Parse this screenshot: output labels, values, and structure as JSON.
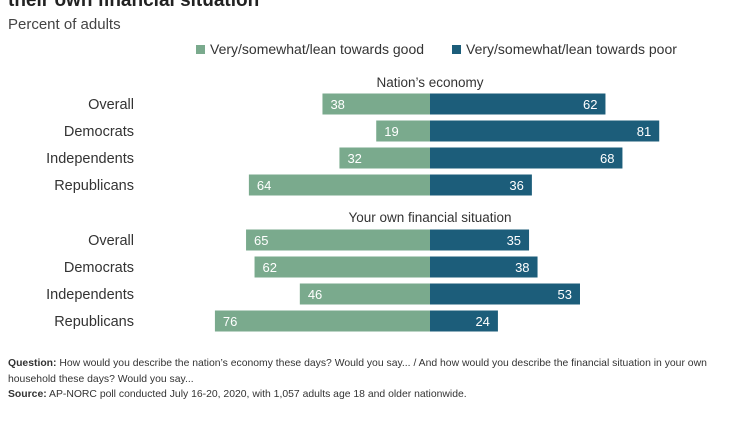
{
  "title": "their own financial situation",
  "subtitle": "Percent of adults",
  "legend": {
    "good": "Very/somewhat/lean towards good",
    "poor": "Very/somewhat/lean towards poor"
  },
  "colors": {
    "good": "#7aaa8d",
    "poor": "#1c5d7a",
    "label_text": "#ffffff"
  },
  "notes": {
    "question_label": "Question:",
    "question": "How would you describe the nation’s economy these days? Would you say... / And how would you describe the financial situation in your own household these days? Would you say...",
    "source_label": "Source:",
    "source": "AP-NORC poll conducted July 16-20, 2020, with 1,057 adults age 18 and older nationwide."
  },
  "chart_data": {
    "type": "bar",
    "orientation": "horizontal-diverging",
    "panels": [
      {
        "title": "Nation’s economy",
        "categories": [
          "Overall",
          "Democrats",
          "Independents",
          "Republicans"
        ],
        "series": [
          {
            "name": "Very/somewhat/lean towards good",
            "values": [
              38,
              19,
              32,
              64
            ]
          },
          {
            "name": "Very/somewhat/lean towards poor",
            "values": [
              62,
              81,
              68,
              36
            ]
          }
        ]
      },
      {
        "title": "Your own financial situation",
        "categories": [
          "Overall",
          "Democrats",
          "Independents",
          "Republicans"
        ],
        "series": [
          {
            "name": "Very/somewhat/lean towards good",
            "values": [
              65,
              62,
              46,
              76
            ]
          },
          {
            "name": "Very/somewhat/lean towards poor",
            "values": [
              35,
              38,
              53,
              24
            ]
          }
        ]
      }
    ],
    "legend_position": "top",
    "grid": false
  }
}
